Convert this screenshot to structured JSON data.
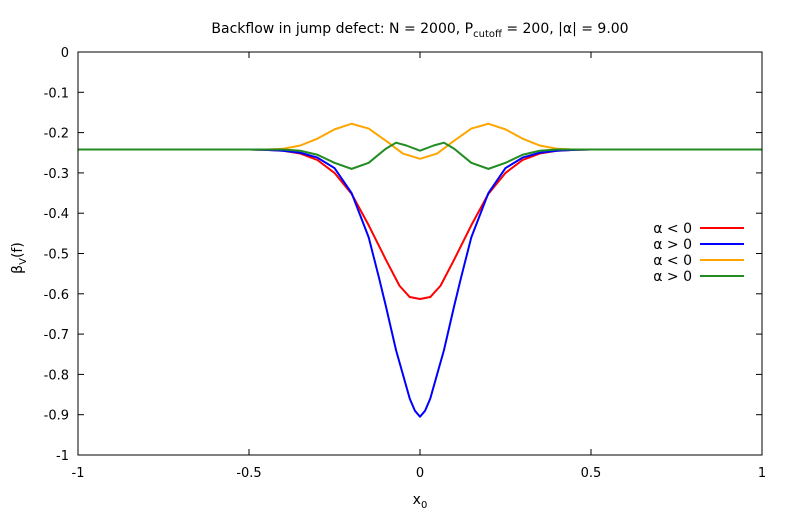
{
  "chart_data": {
    "type": "line",
    "title": {
      "text": "Backflow in jump defect: N = 2000, P",
      "subscript": "cutoff",
      "suffix": " = 200, |α| = 9.00"
    },
    "xlabel": {
      "base": "x",
      "subscript": "0"
    },
    "ylabel": {
      "base": "β",
      "subscript": "V",
      "suffix": "(f)"
    },
    "xlim": [
      -1,
      1
    ],
    "ylim": [
      -1,
      0
    ],
    "xticks": [
      -1,
      -0.5,
      0,
      0.5,
      1
    ],
    "xtick_labels": [
      "-1",
      "-0.5",
      "0",
      "0.5",
      "1"
    ],
    "yticks": [
      0,
      -0.1,
      -0.2,
      -0.3,
      -0.4,
      -0.5,
      -0.6,
      -0.7,
      -0.8,
      -0.9,
      -1
    ],
    "ytick_labels": [
      "0",
      "-0.1",
      "-0.2",
      "-0.3",
      "-0.4",
      "-0.5",
      "-0.6",
      "-0.7",
      "-0.8",
      "-0.9",
      "-1"
    ],
    "grid": false,
    "legend_position": "right",
    "series": [
      {
        "name": "α < 0",
        "color": "#ff0000",
        "points": [
          [
            -1,
            -0.242
          ],
          [
            -0.6,
            -0.242
          ],
          [
            -0.5,
            -0.242
          ],
          [
            -0.45,
            -0.243
          ],
          [
            -0.4,
            -0.245
          ],
          [
            -0.35,
            -0.252
          ],
          [
            -0.3,
            -0.268
          ],
          [
            -0.25,
            -0.3
          ],
          [
            -0.2,
            -0.352
          ],
          [
            -0.15,
            -0.43
          ],
          [
            -0.1,
            -0.515
          ],
          [
            -0.06,
            -0.58
          ],
          [
            -0.03,
            -0.608
          ],
          [
            0,
            -0.613
          ],
          [
            0.03,
            -0.608
          ],
          [
            0.06,
            -0.58
          ],
          [
            0.1,
            -0.515
          ],
          [
            0.15,
            -0.43
          ],
          [
            0.2,
            -0.352
          ],
          [
            0.25,
            -0.3
          ],
          [
            0.3,
            -0.268
          ],
          [
            0.35,
            -0.252
          ],
          [
            0.4,
            -0.245
          ],
          [
            0.45,
            -0.243
          ],
          [
            0.5,
            -0.242
          ],
          [
            0.6,
            -0.242
          ],
          [
            1,
            -0.242
          ]
        ]
      },
      {
        "name": "α > 0",
        "color": "#0000ff",
        "points": [
          [
            -1,
            -0.242
          ],
          [
            -0.6,
            -0.242
          ],
          [
            -0.5,
            -0.242
          ],
          [
            -0.45,
            -0.243
          ],
          [
            -0.4,
            -0.245
          ],
          [
            -0.35,
            -0.25
          ],
          [
            -0.3,
            -0.262
          ],
          [
            -0.25,
            -0.288
          ],
          [
            -0.2,
            -0.35
          ],
          [
            -0.15,
            -0.46
          ],
          [
            -0.12,
            -0.56
          ],
          [
            -0.1,
            -0.63
          ],
          [
            -0.07,
            -0.74
          ],
          [
            -0.05,
            -0.8
          ],
          [
            -0.03,
            -0.86
          ],
          [
            -0.015,
            -0.89
          ],
          [
            0,
            -0.905
          ],
          [
            0.015,
            -0.89
          ],
          [
            0.03,
            -0.86
          ],
          [
            0.05,
            -0.8
          ],
          [
            0.07,
            -0.74
          ],
          [
            0.1,
            -0.63
          ],
          [
            0.12,
            -0.56
          ],
          [
            0.15,
            -0.46
          ],
          [
            0.2,
            -0.35
          ],
          [
            0.25,
            -0.288
          ],
          [
            0.3,
            -0.262
          ],
          [
            0.35,
            -0.25
          ],
          [
            0.4,
            -0.245
          ],
          [
            0.45,
            -0.243
          ],
          [
            0.5,
            -0.242
          ],
          [
            0.6,
            -0.242
          ],
          [
            1,
            -0.242
          ]
        ]
      },
      {
        "name": "α < 0",
        "color": "#ffa500",
        "points": [
          [
            -1,
            -0.242
          ],
          [
            -0.6,
            -0.242
          ],
          [
            -0.45,
            -0.242
          ],
          [
            -0.4,
            -0.24
          ],
          [
            -0.35,
            -0.232
          ],
          [
            -0.3,
            -0.215
          ],
          [
            -0.25,
            -0.192
          ],
          [
            -0.2,
            -0.178
          ],
          [
            -0.15,
            -0.19
          ],
          [
            -0.1,
            -0.22
          ],
          [
            -0.05,
            -0.252
          ],
          [
            0,
            -0.265
          ],
          [
            0.05,
            -0.252
          ],
          [
            0.1,
            -0.22
          ],
          [
            0.15,
            -0.19
          ],
          [
            0.2,
            -0.178
          ],
          [
            0.25,
            -0.192
          ],
          [
            0.3,
            -0.215
          ],
          [
            0.35,
            -0.232
          ],
          [
            0.4,
            -0.24
          ],
          [
            0.45,
            -0.242
          ],
          [
            0.6,
            -0.242
          ],
          [
            1,
            -0.242
          ]
        ]
      },
      {
        "name": "α > 0",
        "color": "#228b22",
        "points": [
          [
            -1,
            -0.242
          ],
          [
            -0.6,
            -0.242
          ],
          [
            -0.4,
            -0.242
          ],
          [
            -0.35,
            -0.245
          ],
          [
            -0.3,
            -0.255
          ],
          [
            -0.25,
            -0.275
          ],
          [
            -0.2,
            -0.29
          ],
          [
            -0.15,
            -0.275
          ],
          [
            -0.1,
            -0.24
          ],
          [
            -0.07,
            -0.225
          ],
          [
            -0.04,
            -0.232
          ],
          [
            0,
            -0.245
          ],
          [
            0.04,
            -0.232
          ],
          [
            0.07,
            -0.225
          ],
          [
            0.1,
            -0.24
          ],
          [
            0.15,
            -0.275
          ],
          [
            0.2,
            -0.29
          ],
          [
            0.25,
            -0.275
          ],
          [
            0.3,
            -0.255
          ],
          [
            0.35,
            -0.245
          ],
          [
            0.4,
            -0.242
          ],
          [
            0.6,
            -0.242
          ],
          [
            1,
            -0.242
          ]
        ]
      }
    ]
  }
}
